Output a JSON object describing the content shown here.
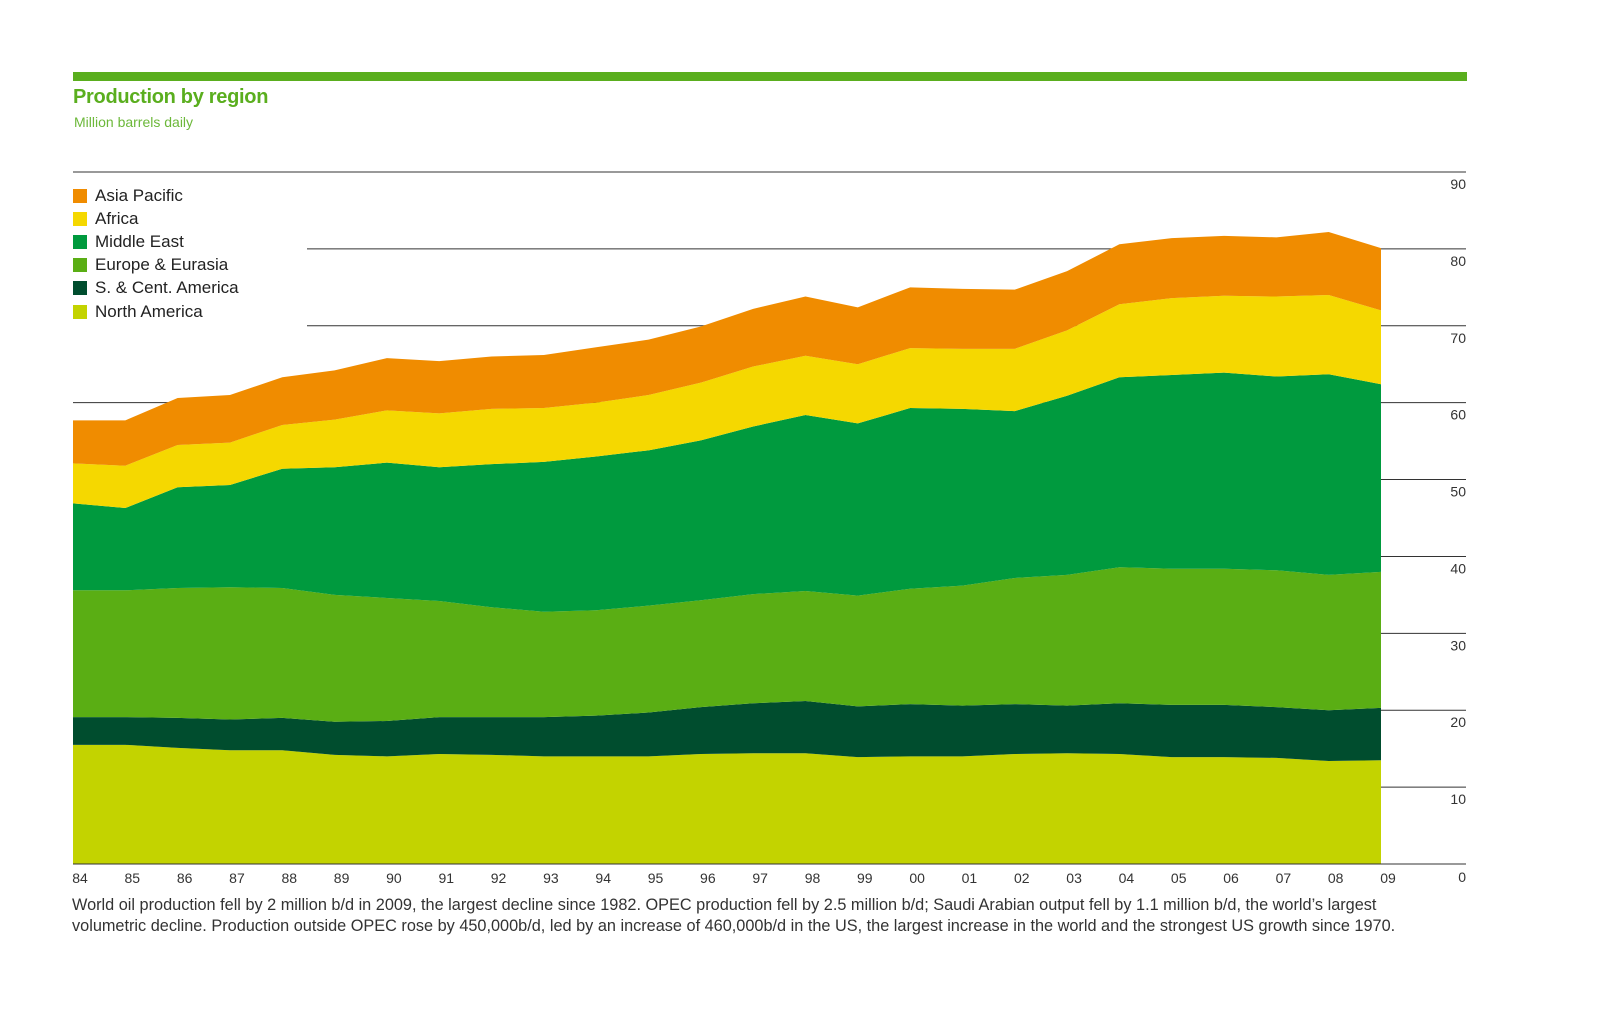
{
  "chart_data": {
    "type": "area",
    "stacked": true,
    "title": "Production by region",
    "subtitle": "Million barrels daily",
    "categories": [
      "84",
      "85",
      "86",
      "87",
      "88",
      "89",
      "90",
      "91",
      "92",
      "93",
      "94",
      "95",
      "96",
      "97",
      "98",
      "99",
      "00",
      "01",
      "02",
      "03",
      "04",
      "05",
      "06",
      "07",
      "08",
      "09"
    ],
    "ylim": [
      0,
      90
    ],
    "yticks": [
      0,
      10,
      20,
      30,
      40,
      50,
      60,
      70,
      80,
      90
    ],
    "y_axis_side": "right",
    "grid": true,
    "legend_position": "top-left",
    "series": [
      {
        "name": "North America",
        "color": "#c3d300",
        "values": [
          15.5,
          15.5,
          15.1,
          14.8,
          14.8,
          14.2,
          14.0,
          14.3,
          14.2,
          14.0,
          14.0,
          14.0,
          14.3,
          14.4,
          14.4,
          13.9,
          14.0,
          14.0,
          14.3,
          14.4,
          14.3,
          13.9,
          13.9,
          13.8,
          13.4,
          13.5
        ]
      },
      {
        "name": "S. & Cent. America",
        "color": "#004d2e",
        "values": [
          3.6,
          3.6,
          3.9,
          4.0,
          4.2,
          4.3,
          4.6,
          4.8,
          4.9,
          5.1,
          5.3,
          5.7,
          6.1,
          6.5,
          6.8,
          6.6,
          6.8,
          6.6,
          6.5,
          6.2,
          6.6,
          6.8,
          6.8,
          6.6,
          6.6,
          6.8
        ]
      },
      {
        "name": "Europe & Eurasia",
        "color": "#5aae14",
        "values": [
          16.5,
          16.5,
          16.9,
          17.2,
          16.9,
          16.5,
          16.0,
          15.1,
          14.3,
          13.7,
          13.7,
          13.9,
          13.9,
          14.2,
          14.3,
          14.4,
          15.0,
          15.6,
          16.4,
          17.0,
          17.7,
          17.7,
          17.7,
          17.8,
          17.6,
          17.7
        ]
      },
      {
        "name": "Middle East",
        "color": "#009a3e",
        "values": [
          11.3,
          10.7,
          13.1,
          13.3,
          15.5,
          16.6,
          17.6,
          17.4,
          18.6,
          19.5,
          20.0,
          20.2,
          20.8,
          21.8,
          22.9,
          22.4,
          23.5,
          23.0,
          21.7,
          23.3,
          24.7,
          25.2,
          25.5,
          25.2,
          26.1,
          24.4
        ]
      },
      {
        "name": "Africa",
        "color": "#f5d800",
        "values": [
          5.2,
          5.5,
          5.5,
          5.5,
          5.7,
          6.2,
          6.8,
          7.0,
          7.2,
          7.0,
          7.0,
          7.2,
          7.5,
          7.8,
          7.7,
          7.7,
          7.8,
          7.8,
          8.1,
          8.5,
          9.5,
          10.0,
          10.0,
          10.4,
          10.3,
          9.6
        ]
      },
      {
        "name": "Asia Pacific",
        "color": "#f08c00",
        "values": [
          5.6,
          5.9,
          6.1,
          6.2,
          6.2,
          6.4,
          6.8,
          6.8,
          6.8,
          6.9,
          7.2,
          7.2,
          7.3,
          7.5,
          7.7,
          7.4,
          7.9,
          7.8,
          7.7,
          7.7,
          7.8,
          7.8,
          7.8,
          7.7,
          8.2,
          8.1
        ]
      }
    ],
    "legend_order": [
      "Asia Pacific",
      "Africa",
      "Middle East",
      "Europe & Eurasia",
      "S. & Cent. America",
      "North America"
    ],
    "caption": "World oil production fell by 2 million b/d in 2009, the largest decline since 1982. OPEC production fell by 2.5 million b/d; Saudi Arabian output fell by 1.1 million b/d, the world’s largest volumetric decline. Production outside OPEC rose by 450,000b/d, led by an increase of 460,000b/d in the US, the largest increase in the world and the strongest US growth since 1970."
  }
}
